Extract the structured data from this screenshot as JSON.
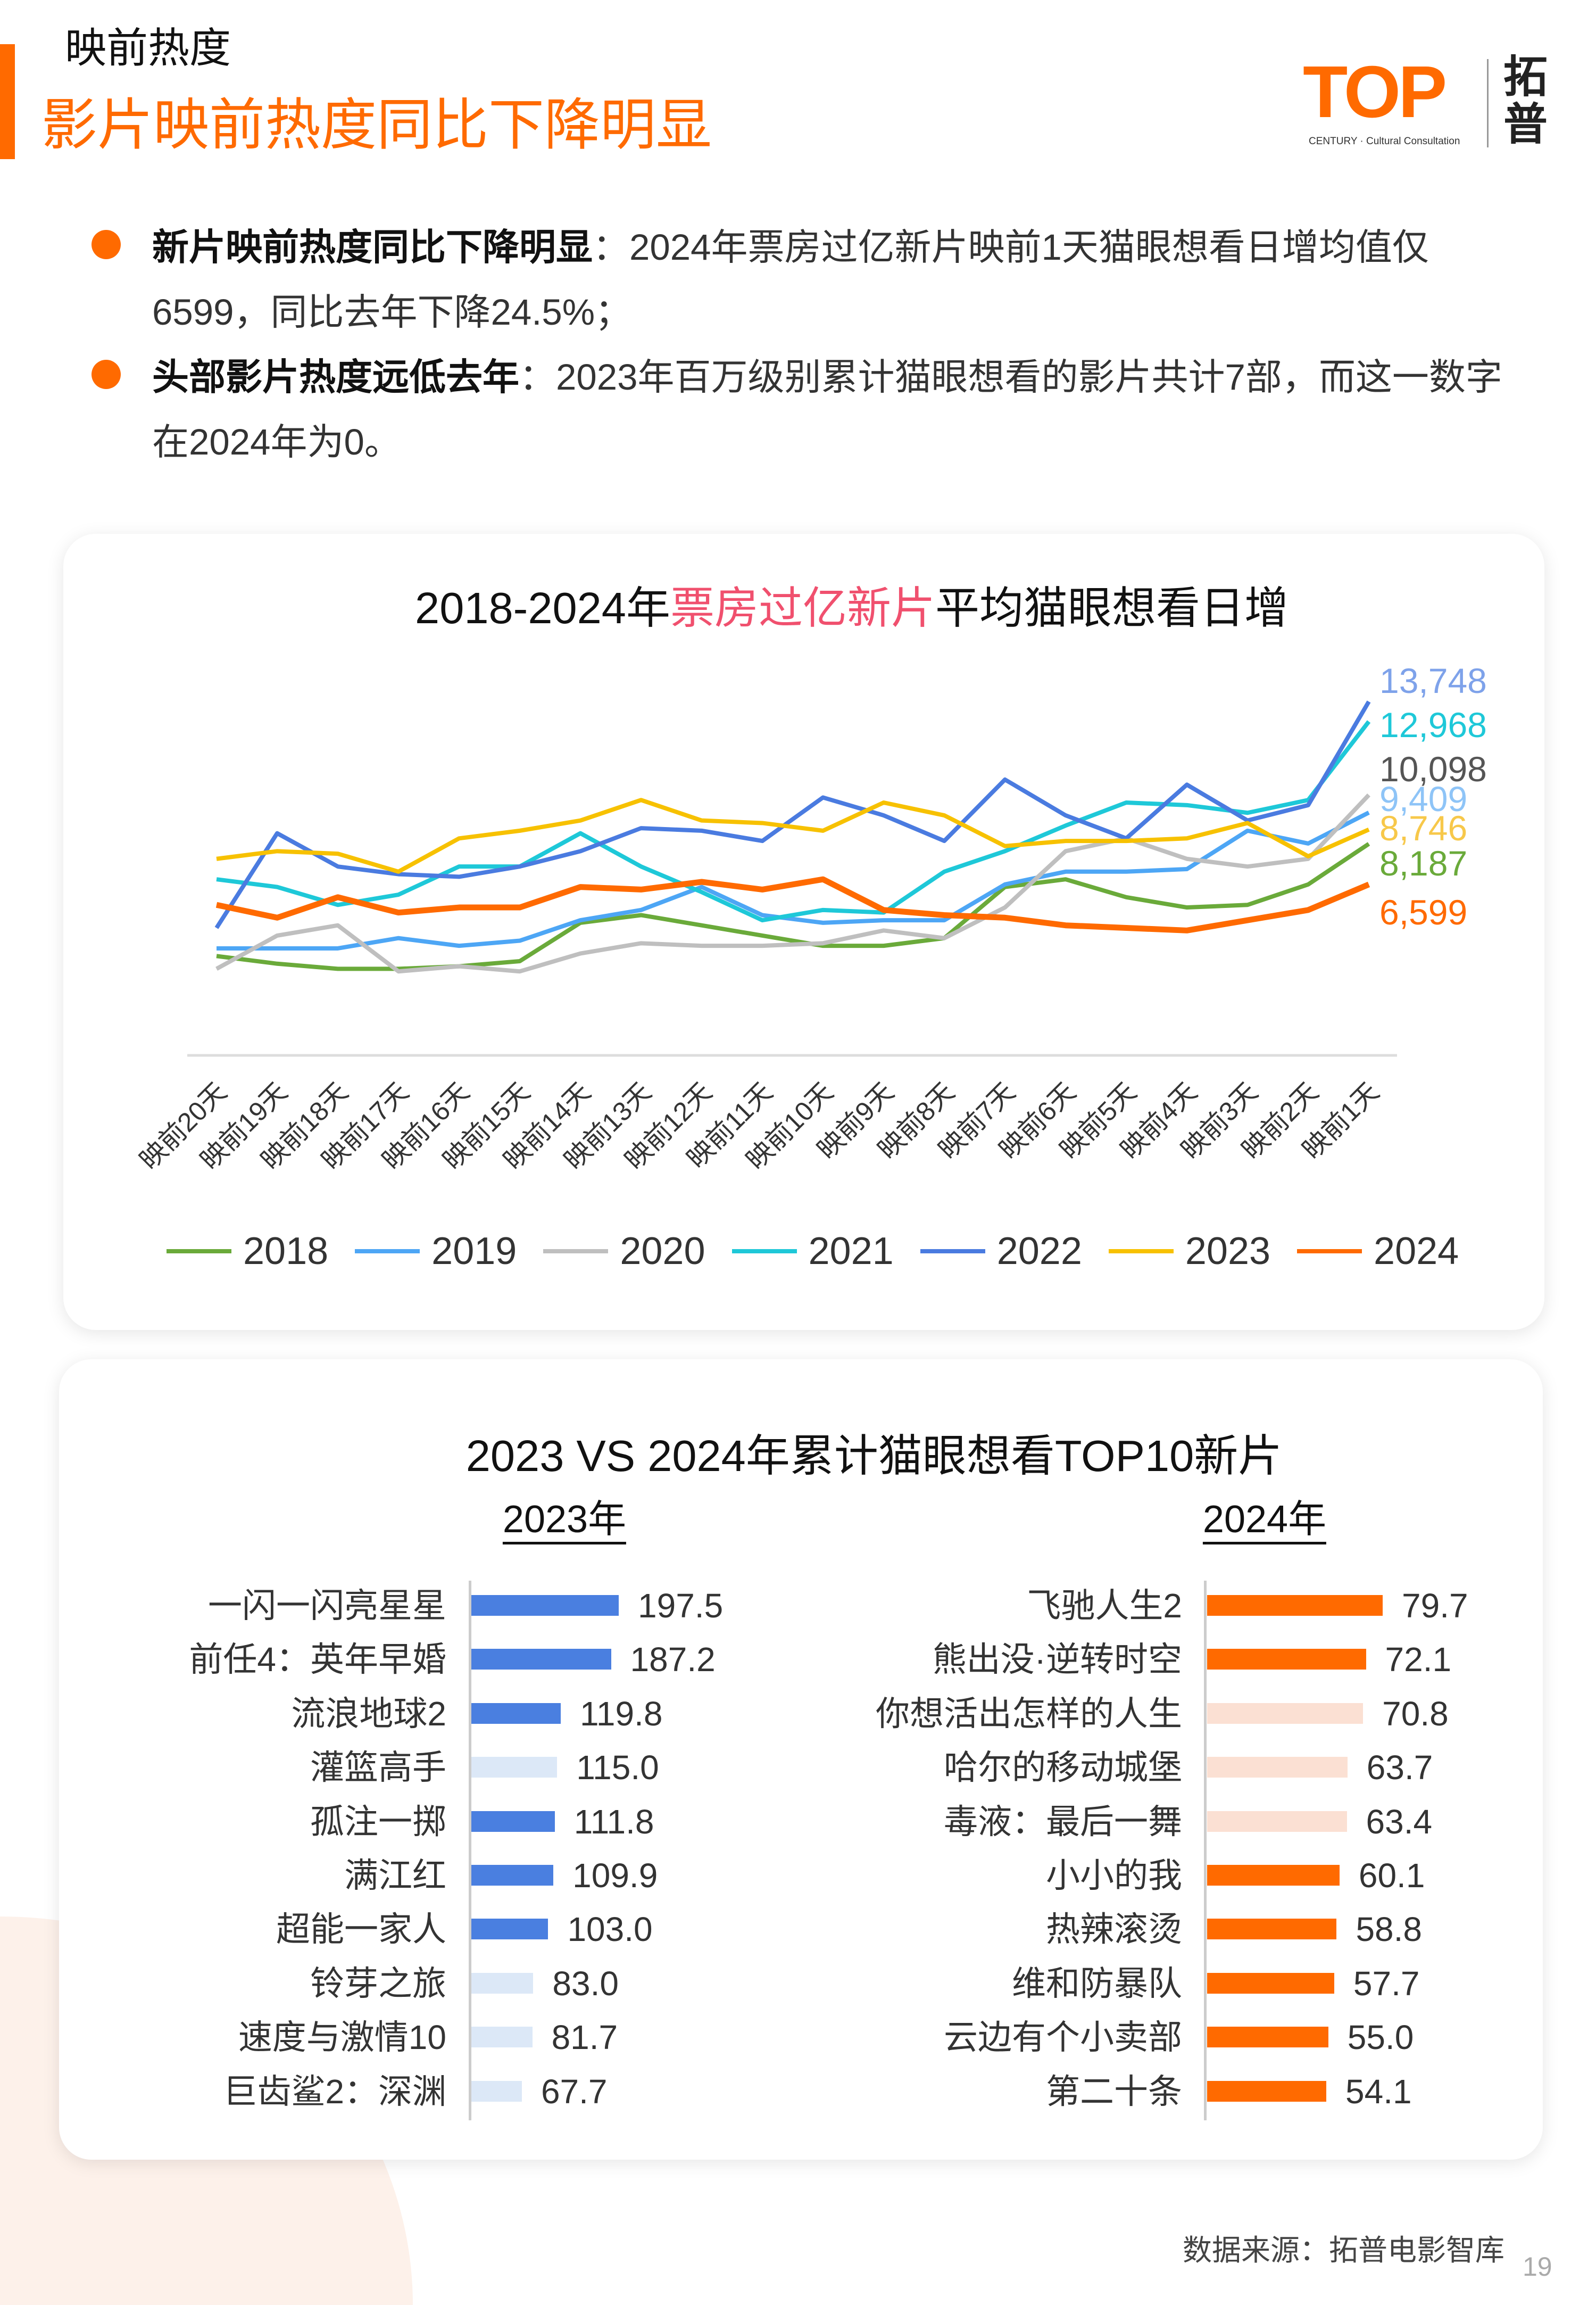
{
  "header": {
    "kicker": "映前热度",
    "title": "影片映前热度同比下降明显",
    "logo": {
      "mark": "TOP",
      "cn": "拓普",
      "sub": "CENTURY · Cultural Consultation"
    }
  },
  "bullets": [
    {
      "bold": "新片映前热度同比下降明显",
      "text": "：2024年票房过亿新片映前1天猫眼想看日增均值仅6599，同比去年下降24.5%；"
    },
    {
      "bold": "头部影片热度远低去年",
      "text": "：2023年百万级别累计猫眼想看的影片共计7部，而这一数字在2024年为0。"
    }
  ],
  "colors": {
    "accent": "#ff6a00",
    "highlight": "#f0506e",
    "bar2023": "#4a7fe0",
    "bar2024": "#ff6a00",
    "bar2023_muted": "#dce8f7",
    "bar2024_muted": "#fbe0d3"
  },
  "chart_data": [
    {
      "type": "line",
      "title_pre": "2018-2024年",
      "title_hl": "票房过亿新片",
      "title_post": "平均猫眼想看日增",
      "categories": [
        "映前20天",
        "映前19天",
        "映前18天",
        "映前17天",
        "映前16天",
        "映前15天",
        "映前14天",
        "映前13天",
        "映前12天",
        "映前11天",
        "映前10天",
        "映前9天",
        "映前8天",
        "映前7天",
        "映前6天",
        "映前5天",
        "映前4天",
        "映前3天",
        "映前2天",
        "映前1天"
      ],
      "ylim": [
        0,
        14000
      ],
      "grid": false,
      "legend": "bottom",
      "series": [
        {
          "name": "2018",
          "color": "#6aaa3a",
          "label_color": "#6aaa3a",
          "end_label": "8,187",
          "values": [
            3800,
            3500,
            3300,
            3300,
            3400,
            3600,
            5100,
            5400,
            5000,
            4600,
            4200,
            4200,
            4500,
            6500,
            6800,
            6100,
            5700,
            5800,
            6600,
            8187
          ]
        },
        {
          "name": "2019",
          "color": "#4da6f5",
          "label_color": "#8ec4f7",
          "end_label": "9,409",
          "values": [
            4100,
            4100,
            4100,
            4500,
            4200,
            4400,
            5200,
            5600,
            6500,
            5400,
            5100,
            5200,
            5200,
            6600,
            7100,
            7100,
            7200,
            8700,
            8200,
            9409
          ]
        },
        {
          "name": "2020",
          "color": "#bfbfbf",
          "label_color": "#555555",
          "end_label": "10,098",
          "values": [
            3300,
            4600,
            5000,
            3200,
            3400,
            3200,
            3900,
            4300,
            4200,
            4200,
            4300,
            4800,
            4500,
            5700,
            7900,
            8400,
            7600,
            7300,
            7600,
            10098
          ]
        },
        {
          "name": "2021",
          "color": "#1ec8d8",
          "label_color": "#1ec8d8",
          "end_label": "12,968",
          "values": [
            6800,
            6500,
            5800,
            6200,
            7300,
            7300,
            8600,
            7300,
            6300,
            5200,
            5600,
            5500,
            7100,
            7900,
            8900,
            9800,
            9700,
            9400,
            9900,
            12968
          ]
        },
        {
          "name": "2022",
          "color": "#4a7be0",
          "label_color": "#7ea2ea",
          "end_label": "13,748",
          "values": [
            4900,
            8600,
            7300,
            7000,
            6900,
            7300,
            7900,
            8800,
            8700,
            8300,
            10000,
            9300,
            8300,
            10700,
            9300,
            8400,
            10500,
            9100,
            9700,
            13748
          ]
        },
        {
          "name": "2023",
          "color": "#f7c100",
          "label_color": "#f7c84a",
          "end_label": "8,746",
          "values": [
            7600,
            7900,
            7800,
            7100,
            8400,
            8700,
            9100,
            9900,
            9100,
            9000,
            8700,
            9800,
            9300,
            8100,
            8300,
            8300,
            8400,
            9000,
            7700,
            8746
          ]
        },
        {
          "name": "2024",
          "color": "#ff6a00",
          "label_color": "#ff6a00",
          "end_label": "6,599",
          "values": [
            5800,
            5300,
            6100,
            5500,
            5700,
            5700,
            6500,
            6400,
            6700,
            6400,
            6800,
            5600,
            5400,
            5300,
            5000,
            4900,
            4800,
            5200,
            5600,
            6599
          ]
        }
      ]
    },
    {
      "type": "bar",
      "title": "2023 VS 2024年累计猫眼想看TOP10新片",
      "groups": [
        {
          "label": "2023年",
          "color": "#4a7fe0",
          "muted": "#dce8f7",
          "items": [
            {
              "name": "一闪一闪亮星星",
              "value": 197.5,
              "muted": false
            },
            {
              "name": "前任4：英年早婚",
              "value": 187.2,
              "muted": false
            },
            {
              "name": "流浪地球2",
              "value": 119.8,
              "muted": false
            },
            {
              "name": "灌篮高手",
              "value": 115.0,
              "muted": true
            },
            {
              "name": "孤注一掷",
              "value": 111.8,
              "muted": false
            },
            {
              "name": "满江红",
              "value": 109.9,
              "muted": false
            },
            {
              "name": "超能一家人",
              "value": 103.0,
              "muted": false
            },
            {
              "name": "铃芽之旅",
              "value": 83.0,
              "muted": true
            },
            {
              "name": "速度与激情10",
              "value": 81.7,
              "muted": true
            },
            {
              "name": "巨齿鲨2：深渊",
              "value": 67.7,
              "muted": true
            }
          ]
        },
        {
          "label": "2024年",
          "color": "#ff6a00",
          "muted": "#fbe0d3",
          "items": [
            {
              "name": "飞驰人生2",
              "value": 79.7,
              "muted": false
            },
            {
              "name": "熊出没·逆转时空",
              "value": 72.1,
              "muted": false
            },
            {
              "name": "你想活出怎样的人生",
              "value": 70.8,
              "muted": true
            },
            {
              "name": "哈尔的移动城堡",
              "value": 63.7,
              "muted": true
            },
            {
              "name": "毒液：最后一舞",
              "value": 63.4,
              "muted": true
            },
            {
              "name": "小小的我",
              "value": 60.1,
              "muted": false
            },
            {
              "name": "热辣滚烫",
              "value": 58.8,
              "muted": false
            },
            {
              "name": "维和防暴队",
              "value": 57.7,
              "muted": false
            },
            {
              "name": "云边有个小卖部",
              "value": 55.0,
              "muted": false
            },
            {
              "name": "第二十条",
              "value": 54.1,
              "muted": false
            }
          ]
        }
      ]
    }
  ],
  "footer": {
    "source": "数据来源：拓普电影智库",
    "page": "19"
  }
}
